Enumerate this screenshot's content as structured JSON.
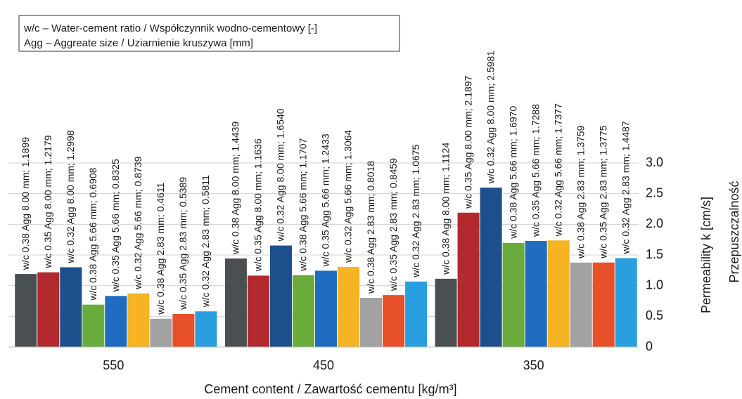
{
  "chart_data": {
    "type": "bar",
    "annotations": [
      "w/c – Water-cement ratio / Współczynnik wodno-cementowy [-]",
      "Agg – Aggreate size / Uziarnienie kruszywa [mm]"
    ],
    "xlabel": "Cement content / Zawartość cementu [kg/m³]",
    "ylabel": "Permeability k [cm/s]",
    "ylabel2": "Przepuszczalność",
    "categories": [
      "550",
      "450",
      "350"
    ],
    "series": [
      {
        "color": "#4a4f52",
        "values": [
          1.1899,
          1.4439,
          1.1124
        ],
        "value_labels": [
          "w/c 0.38 Agg 8.00 mm; 1.1899",
          "w/c 0.38 Agg 8.00 mm; 1.4439",
          "w/c 0.38 Agg 8.00 mm; 1.1124"
        ]
      },
      {
        "color": "#b2292e",
        "values": [
          1.2179,
          1.1636,
          2.1897
        ],
        "value_labels": [
          "w/c 0.35 Agg 8.00 mm; 1.2179",
          "w/c 0.35 Agg 8.00 mm; 1.1636",
          "w/c 0.35 Agg 8.00 mm; 2.1897"
        ]
      },
      {
        "color": "#1d4f8c",
        "values": [
          1.2998,
          1.654,
          2.5981
        ],
        "value_labels": [
          "w/c 0.32 Agg 8.00 mm; 1.2998",
          "w/c 0.32 Agg 8.00 mm; 1.6540",
          "w/c 0.32 Agg 8.00 mm; 2.5981"
        ]
      },
      {
        "color": "#6aac3c",
        "values": [
          0.6908,
          1.1707,
          1.697
        ],
        "value_labels": [
          "w/c 0.38 Agg 5.66 mm; 0.6908",
          "w/c 0.38 Agg 5.66 mm; 1.1707",
          "w/c 0.38 Agg 5.66 mm; 1.6970"
        ]
      },
      {
        "color": "#1f6cc0",
        "values": [
          0.8325,
          1.2433,
          1.7288
        ],
        "value_labels": [
          "w/c 0.35 Agg 5.66 mm; 0.8325",
          "w/c 0.35 Agg 5.66 mm; 1.2433",
          "w/c 0.35 Agg 5.66 mm; 1.7288"
        ]
      },
      {
        "color": "#f6b323",
        "values": [
          0.8739,
          1.3064,
          1.7377
        ],
        "value_labels": [
          "w/c 0.32 Agg 5.66 mm; 0.8739",
          "w/c 0.32 Agg 5.66 mm; 1.3064",
          "w/c 0.32 Agg 5.66 mm; 1.7377"
        ]
      },
      {
        "color": "#a2a2a2",
        "values": [
          0.4611,
          0.8018,
          1.3759
        ],
        "value_labels": [
          "w/c 0.38 Agg 2.83 mm; 0.4611",
          "w/c 0.38 Agg 2.83 mm; 0.8018",
          "w/c 0.38 Agg 2.83 mm; 1.3759"
        ]
      },
      {
        "color": "#e8502a",
        "values": [
          0.5389,
          0.8459,
          1.3775
        ],
        "value_labels": [
          "w/c 0.35 Agg 2.83 mm; 0.5389",
          "w/c 0.35 Agg 2.83 mm; 0.8459",
          "w/c 0.35 Agg 2.83 mm; 1.3775"
        ]
      },
      {
        "color": "#2a9fe0",
        "values": [
          0.5811,
          1.0675,
          1.4487
        ],
        "value_labels": [
          "w/c 0.32 Agg 2.83 mm; 0.5811",
          "w/c 0.32 Agg 2.83 mm; 1.0675",
          "w/c 0.32 Agg 2.83 mm; 1.4487"
        ]
      }
    ],
    "ylim": [
      0,
      3
    ],
    "yticks": [
      0,
      0.5,
      {
        "value": 1,
        "label": "1.0"
      },
      1.5,
      {
        "value": 2,
        "label": "2.0"
      },
      2.5,
      {
        "value": 3,
        "label": "3.0"
      }
    ],
    "grid": true
  }
}
